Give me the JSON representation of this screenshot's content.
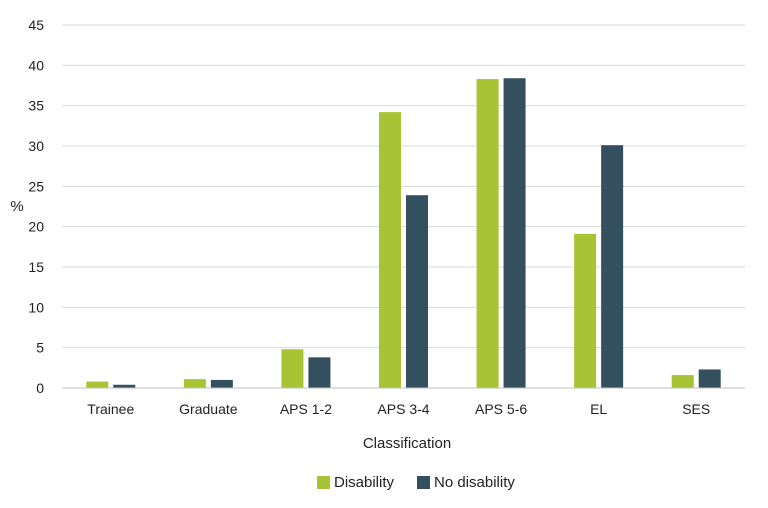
{
  "chart_data": {
    "type": "bar",
    "title": "",
    "xlabel": "Classification",
    "ylabel": "%",
    "ylim": [
      0,
      45
    ],
    "yticks": [
      0,
      5,
      10,
      15,
      20,
      25,
      30,
      35,
      40,
      45
    ],
    "grid": true,
    "legend_position": "bottom",
    "categories": [
      "Trainee",
      "Graduate",
      "APS 1-2",
      "APS 3-4",
      "APS 5-6",
      "EL",
      "SES"
    ],
    "series": [
      {
        "name": "Disability",
        "color": "#a8c434",
        "values": [
          0.8,
          1.1,
          4.8,
          34.2,
          38.3,
          19.1,
          1.6
        ]
      },
      {
        "name": "No disability",
        "color": "#344f5e",
        "values": [
          0.4,
          1.0,
          3.8,
          23.9,
          38.4,
          30.1,
          2.3
        ]
      }
    ]
  }
}
